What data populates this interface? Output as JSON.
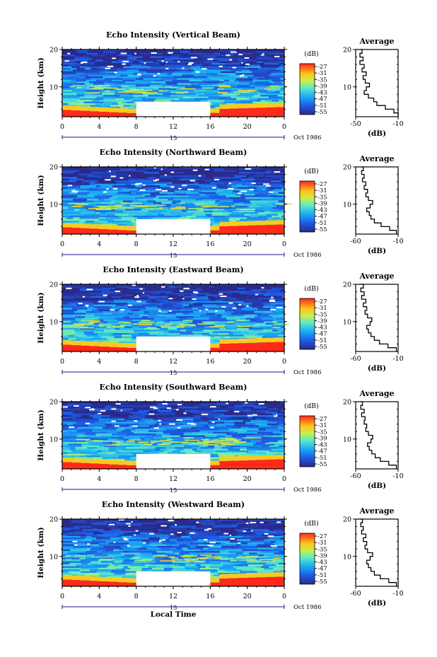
{
  "chart_data": [
    {
      "type": "heatmap",
      "title": "Echo Intensity (Vertical Beam)",
      "ylabel": "Height (km)",
      "x_ticks": [
        "0",
        "4",
        "8",
        "12",
        "16",
        "20",
        "0"
      ],
      "xlim": [
        0,
        24
      ],
      "y_ticks": [
        "10",
        "20"
      ],
      "ylim": [
        2,
        20
      ],
      "day_label": "15",
      "date_label": "Oct 1986",
      "colorbar": {
        "label": "(dB)",
        "ticks": [
          "-27",
          "-31",
          "-35",
          "-39",
          "-43",
          "-47",
          "-51",
          "-55"
        ],
        "range": [
          -55,
          -27
        ]
      },
      "gap": {
        "x": [
          8,
          16
        ],
        "y_below": 6
      },
      "average_profile": {
        "title": "Average",
        "xlabel": "(dB)",
        "x_ticks": [
          "-50",
          "-10"
        ],
        "xlim": [
          -50,
          -10
        ],
        "y_ticks": [
          "10",
          "20"
        ],
        "ylim": [
          2,
          20
        ],
        "height_km": [
          2,
          3,
          4,
          5,
          6,
          7,
          8,
          9,
          10,
          11,
          12,
          13,
          14,
          15,
          16,
          17,
          18,
          19,
          20
        ],
        "db": [
          -10,
          -14,
          -22,
          -30,
          -33,
          -38,
          -42,
          -40,
          -37,
          -41,
          -43,
          -40,
          -44,
          -42,
          -46,
          -43,
          -46,
          -44,
          -46
        ]
      }
    },
    {
      "type": "heatmap",
      "title": "Echo Intensity (Northward Beam)",
      "ylabel": "Height (km)",
      "x_ticks": [
        "0",
        "4",
        "8",
        "12",
        "16",
        "20",
        "0"
      ],
      "xlim": [
        0,
        24
      ],
      "y_ticks": [
        "10",
        "20"
      ],
      "ylim": [
        2,
        20
      ],
      "day_label": "15",
      "date_label": "Oct 1986",
      "colorbar": {
        "label": "(dB)",
        "ticks": [
          "-27",
          "-31",
          "-35",
          "-39",
          "-43",
          "-47",
          "-51",
          "-55"
        ],
        "range": [
          -55,
          -27
        ]
      },
      "gap": {
        "x": [
          8,
          16
        ],
        "y_below": 6
      },
      "average_profile": {
        "title": "Average",
        "xlabel": "(dB)",
        "x_ticks": [
          "-60",
          "-10"
        ],
        "xlim": [
          -60,
          -10
        ],
        "y_ticks": [
          "10",
          "20"
        ],
        "ylim": [
          2,
          20
        ],
        "height_km": [
          2,
          3,
          4,
          5,
          6,
          7,
          8,
          9,
          10,
          11,
          12,
          13,
          14,
          15,
          16,
          17,
          18,
          19,
          20
        ],
        "db": [
          -12,
          -20,
          -30,
          -38,
          -42,
          -44,
          -47,
          -43,
          -40,
          -45,
          -48,
          -46,
          -50,
          -48,
          -52,
          -50,
          -53,
          -51,
          -54
        ]
      }
    },
    {
      "type": "heatmap",
      "title": "Echo Intensity (Eastward Beam)",
      "ylabel": "Height (km)",
      "x_ticks": [
        "0",
        "4",
        "8",
        "12",
        "16",
        "20",
        "0"
      ],
      "xlim": [
        0,
        24
      ],
      "y_ticks": [
        "10",
        "20"
      ],
      "ylim": [
        2,
        20
      ],
      "day_label": "15",
      "date_label": "Oct 1986",
      "colorbar": {
        "label": "(dB)",
        "ticks": [
          "-27",
          "-31",
          "-35",
          "-39",
          "-43",
          "-47",
          "-51",
          "-55"
        ],
        "range": [
          -55,
          -27
        ]
      },
      "gap": {
        "x": [
          8,
          16
        ],
        "y_below": 6
      },
      "average_profile": {
        "title": "Average",
        "xlabel": "(dB)",
        "x_ticks": [
          "-60",
          "-10"
        ],
        "xlim": [
          -60,
          -10
        ],
        "y_ticks": [
          "10",
          "20"
        ],
        "ylim": [
          2,
          20
        ],
        "height_km": [
          2,
          3,
          4,
          5,
          6,
          7,
          8,
          9,
          10,
          11,
          12,
          13,
          14,
          15,
          16,
          17,
          18,
          19,
          20
        ],
        "db": [
          -12,
          -22,
          -32,
          -38,
          -42,
          -45,
          -47,
          -43,
          -41,
          -46,
          -49,
          -47,
          -51,
          -48,
          -53,
          -50,
          -54,
          -51,
          -55
        ]
      }
    },
    {
      "type": "heatmap",
      "title": "Echo Intensity (Southward Beam)",
      "ylabel": "Height (km)",
      "x_ticks": [
        "0",
        "4",
        "8",
        "12",
        "16",
        "20",
        "0"
      ],
      "xlim": [
        0,
        24
      ],
      "y_ticks": [
        "10",
        "20"
      ],
      "ylim": [
        2,
        20
      ],
      "day_label": "15",
      "date_label": "Oct 1986",
      "colorbar": {
        "label": "(dB)",
        "ticks": [
          "-27",
          "-31",
          "-35",
          "-39",
          "-43",
          "-47",
          "-51",
          "-55"
        ],
        "range": [
          -55,
          -27
        ]
      },
      "gap": {
        "x": [
          8,
          16
        ],
        "y_below": 6
      },
      "average_profile": {
        "title": "Average",
        "xlabel": "(dB)",
        "x_ticks": [
          "-60",
          "-10"
        ],
        "xlim": [
          -60,
          -10
        ],
        "y_ticks": [
          "10",
          "20"
        ],
        "ylim": [
          2,
          20
        ],
        "height_km": [
          2,
          3,
          4,
          5,
          6,
          7,
          8,
          9,
          10,
          11,
          12,
          13,
          14,
          15,
          16,
          17,
          18,
          19,
          20
        ],
        "db": [
          -12,
          -21,
          -31,
          -37,
          -41,
          -44,
          -46,
          -42,
          -40,
          -45,
          -48,
          -47,
          -50,
          -49,
          -53,
          -50,
          -54,
          -52,
          -55
        ]
      }
    },
    {
      "type": "heatmap",
      "title": "Echo Intensity (Westward Beam)",
      "ylabel": "Height (km)",
      "x_ticks": [
        "0",
        "4",
        "8",
        "12",
        "16",
        "20",
        "0"
      ],
      "xlim": [
        0,
        24
      ],
      "y_ticks": [
        "10",
        "20"
      ],
      "ylim": [
        2,
        20
      ],
      "day_label": "15",
      "date_label": "Oct 1986",
      "xlabel": "Local Time",
      "colorbar": {
        "label": "(dB)",
        "ticks": [
          "-27",
          "-31",
          "-35",
          "-39",
          "-43",
          "-47",
          "-51",
          "-55"
        ],
        "range": [
          -55,
          -27
        ]
      },
      "gap": {
        "x": [
          8,
          16
        ],
        "y_below": 6
      },
      "average_profile": {
        "title": "Average",
        "xlabel": "(dB)",
        "x_ticks": [
          "-60",
          "-10"
        ],
        "xlim": [
          -60,
          -10
        ],
        "y_ticks": [
          "10",
          "20"
        ],
        "ylim": [
          2,
          20
        ],
        "height_km": [
          2,
          3,
          4,
          5,
          6,
          7,
          8,
          9,
          10,
          11,
          12,
          13,
          14,
          15,
          16,
          17,
          18,
          19,
          20
        ],
        "db": [
          -12,
          -21,
          -31,
          -38,
          -42,
          -45,
          -47,
          -43,
          -40,
          -46,
          -49,
          -47,
          -51,
          -48,
          -53,
          -51,
          -54,
          -52,
          -55
        ]
      }
    }
  ]
}
